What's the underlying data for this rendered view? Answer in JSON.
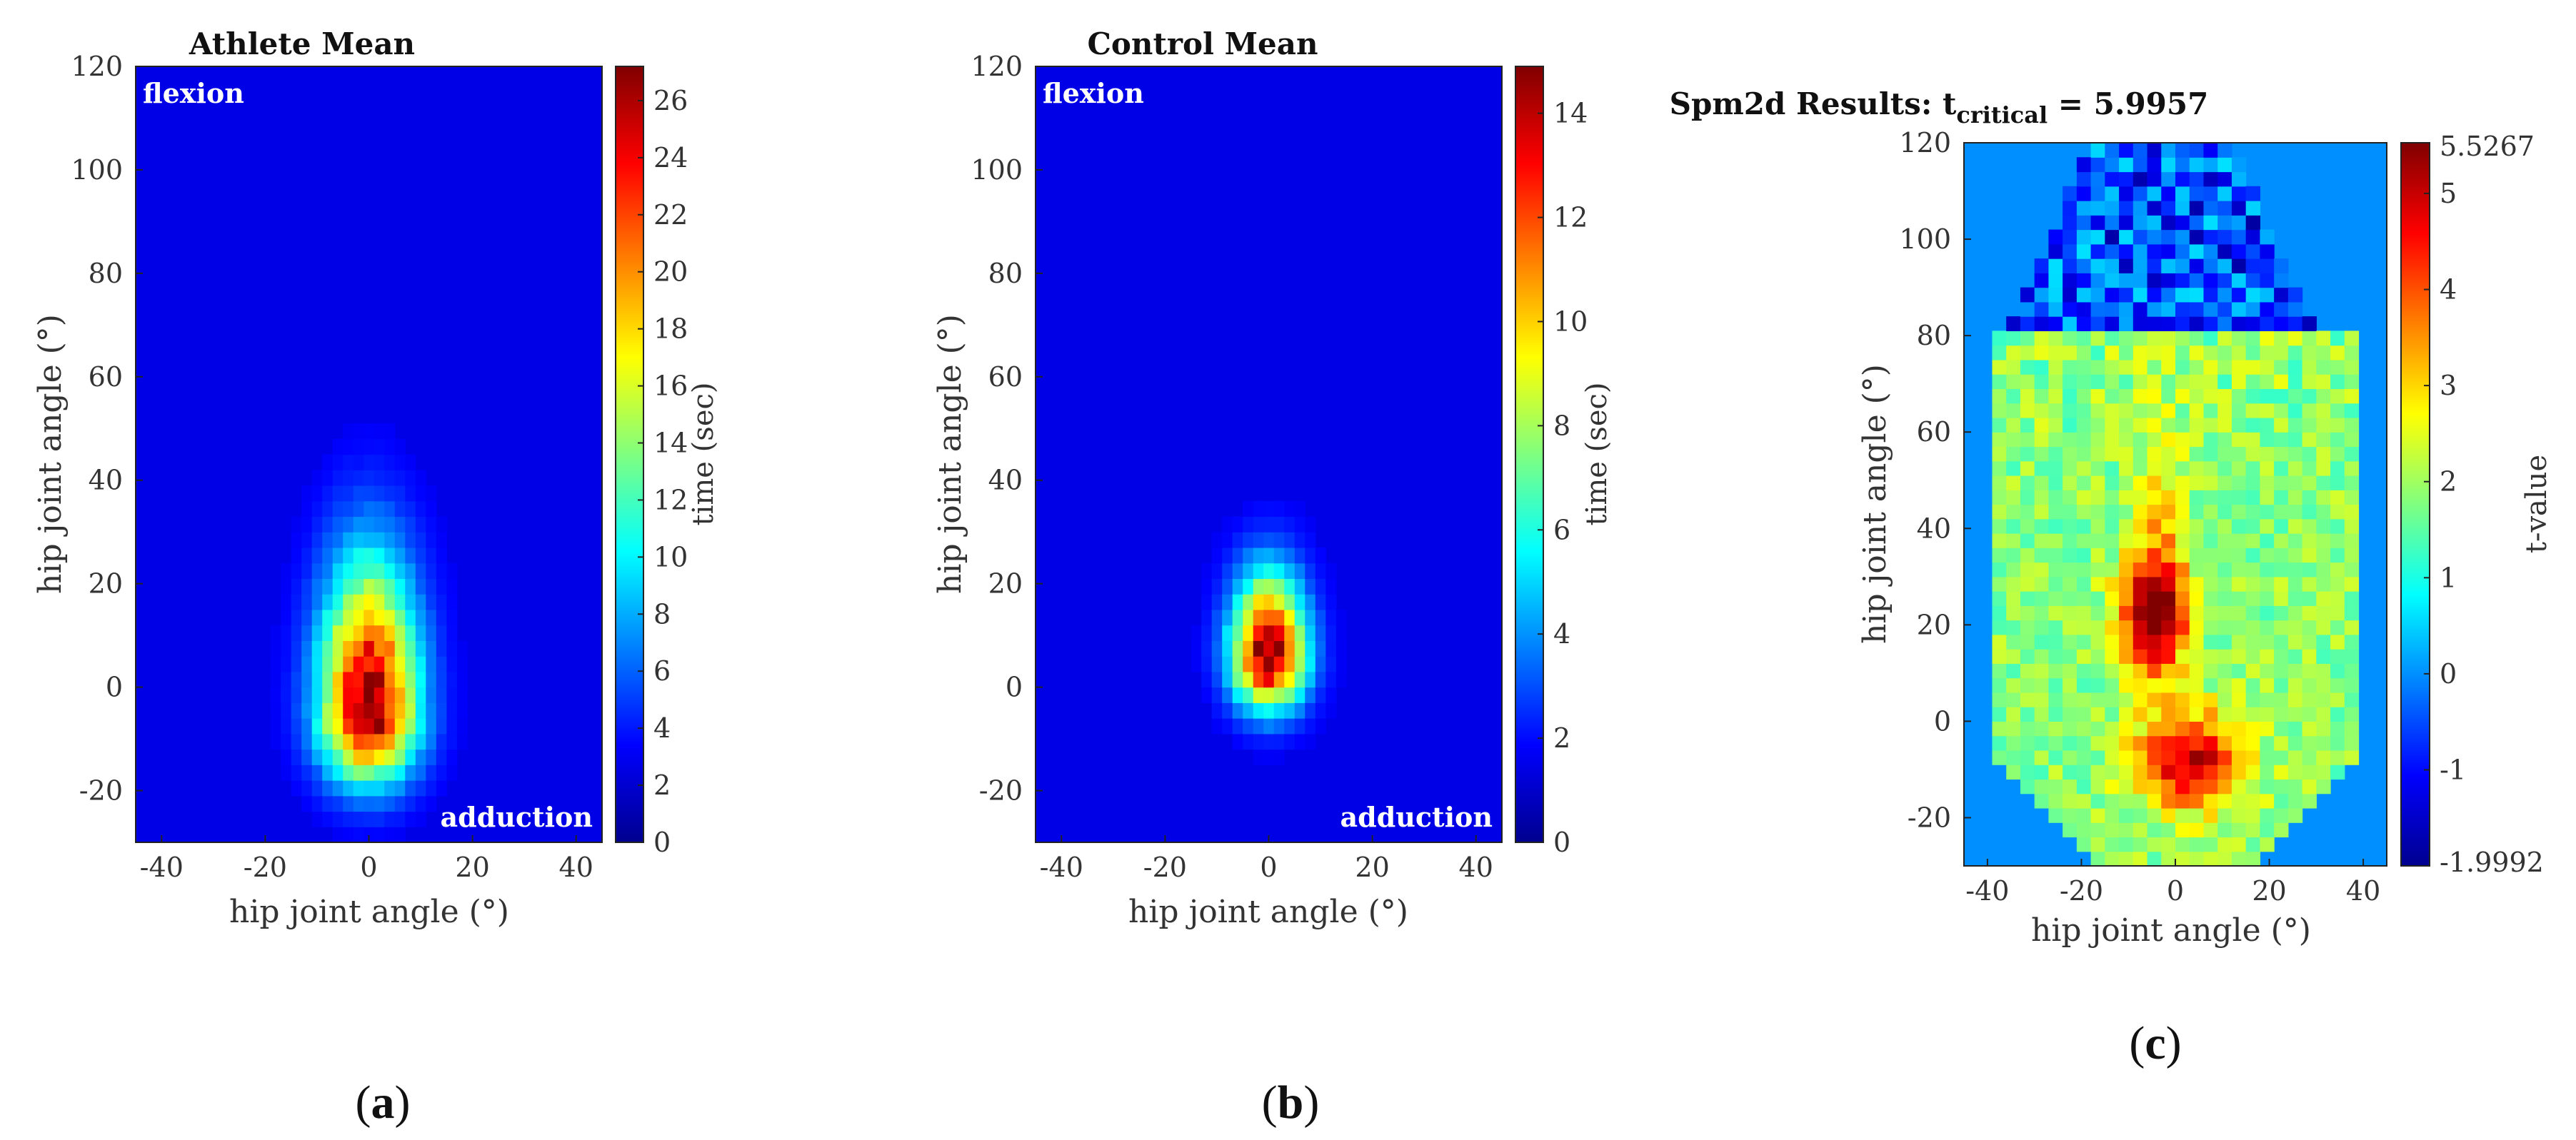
{
  "chart_data": [
    {
      "type": "heatmap",
      "title": "Athlete Mean",
      "xlabel": "hip joint angle (°)",
      "ylabel": "hip joint angle (°)",
      "xlim": [
        -45,
        45
      ],
      "ylim": [
        -30,
        120
      ],
      "xticks": [
        -40,
        -20,
        0,
        20,
        40
      ],
      "yticks": [
        -20,
        0,
        20,
        40,
        60,
        80,
        100,
        120
      ],
      "corner_labels": {
        "top_left": "flexion",
        "bottom_right": "adduction"
      },
      "colorbar": {
        "label": "time (sec)",
        "min": 0,
        "max": 27.2,
        "ticks": [
          0,
          2,
          4,
          6,
          8,
          10,
          12,
          14,
          16,
          18,
          20,
          22,
          24,
          26
        ]
      },
      "peak": {
        "x": 0,
        "y": -5,
        "value": 27
      },
      "subfigure_label": "(a)"
    },
    {
      "type": "heatmap",
      "title": "Control Mean",
      "xlabel": "hip joint angle (°)",
      "ylabel": "hip joint angle (°)",
      "xlim": [
        -45,
        45
      ],
      "ylim": [
        -30,
        120
      ],
      "xticks": [
        -40,
        -20,
        0,
        20,
        40
      ],
      "yticks": [
        -20,
        0,
        20,
        40,
        60,
        80,
        100,
        120
      ],
      "corner_labels": {
        "top_left": "flexion",
        "bottom_right": "adduction"
      },
      "colorbar": {
        "label": "time (sec)",
        "min": 0,
        "max": 14.9,
        "ticks": [
          0,
          2,
          4,
          6,
          8,
          10,
          12,
          14
        ]
      },
      "peak": {
        "x": 0,
        "y": 6,
        "value": 14.8
      },
      "subfigure_label": "(b)"
    },
    {
      "type": "heatmap",
      "title_main": "Spm2d Results: t",
      "title_subscript": "critical",
      "title_suffix": " = 5.9957",
      "xlabel": "hip joint angle (°)",
      "ylabel": "hip joint angle (°)",
      "xlim": [
        -45,
        45
      ],
      "ylim": [
        -30,
        120
      ],
      "xticks": [
        -40,
        -20,
        0,
        20,
        40
      ],
      "yticks": [
        -20,
        0,
        20,
        40,
        60,
        80,
        100,
        120
      ],
      "colorbar": {
        "label": "t-value",
        "min": -1.9992,
        "max": 5.5267,
        "ticks": [
          -1,
          0,
          1,
          2,
          3,
          4,
          5
        ],
        "min_label": "-1.9992",
        "max_label": "5.5267"
      },
      "peaks": [
        {
          "x": -5,
          "y": 22,
          "value": 5.5
        },
        {
          "x": 3,
          "y": -8,
          "value": 5.2
        }
      ],
      "subfigure_label": "(c)"
    }
  ]
}
